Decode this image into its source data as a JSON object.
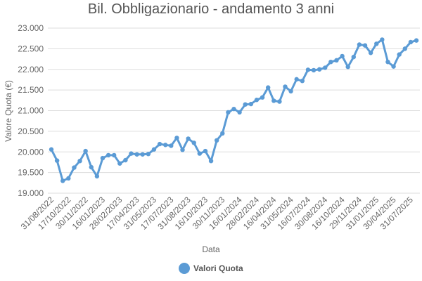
{
  "chart_data": {
    "type": "line",
    "title": "Bil. Obbligazionario - andamento 3 anni",
    "x_label": "Data",
    "y_label": "Valore Quota (€)",
    "categories": [
      "31/08/2022",
      null,
      null,
      "17/10/2022",
      null,
      null,
      "30/11/2022",
      null,
      null,
      "16/01/2023",
      null,
      null,
      "28/02/2023",
      null,
      null,
      "17/04/2023",
      null,
      null,
      "31/05/2023",
      null,
      null,
      "17/07/2023",
      null,
      null,
      "31/08/2023",
      null,
      null,
      "16/10/2023",
      null,
      null,
      "30/11/2023",
      null,
      null,
      "16/01/2024",
      null,
      null,
      "28/02/2024",
      null,
      null,
      "16/04/2024",
      null,
      null,
      "31/05/2024",
      null,
      null,
      "16/07/2024",
      null,
      null,
      "30/08/2024",
      null,
      null,
      "16/10/2024",
      null,
      null,
      "29/11/2024",
      null,
      null,
      "31/01/2025",
      null,
      null,
      "30/04/2025",
      null,
      null,
      "31/07/2025",
      null
    ],
    "series": [
      {
        "name": "Valori Quota",
        "color": "#5b9bd5",
        "values": [
          20060,
          19790,
          19300,
          19360,
          19620,
          19780,
          20020,
          19630,
          19410,
          19850,
          19920,
          19920,
          19720,
          19800,
          19960,
          19940,
          19940,
          19950,
          20060,
          20190,
          20170,
          20150,
          20340,
          20050,
          20320,
          20220,
          19960,
          20020,
          19780,
          20280,
          20450,
          20960,
          21040,
          20960,
          21150,
          21160,
          21260,
          21320,
          21560,
          21240,
          21220,
          21580,
          21470,
          21760,
          21720,
          21990,
          21980,
          22000,
          22040,
          22180,
          22220,
          22320,
          22060,
          22300,
          22600,
          22580,
          22400,
          22620,
          22720,
          22180,
          22070,
          22360,
          22500,
          22660,
          22700
        ]
      }
    ],
    "ylim": [
      19000,
      23000
    ],
    "yticks": [
      {
        "value": 19000,
        "label": "19.000"
      },
      {
        "value": 19500,
        "label": "19.500"
      },
      {
        "value": 20000,
        "label": "20.000"
      },
      {
        "value": 20500,
        "label": "20.500"
      },
      {
        "value": 21000,
        "label": "21.000"
      },
      {
        "value": 21500,
        "label": "21.500"
      },
      {
        "value": 22000,
        "label": "22.000"
      },
      {
        "value": 22500,
        "label": "22.500"
      },
      {
        "value": 23000,
        "label": "23.000"
      }
    ],
    "grid": true,
    "legend": "bottom"
  }
}
